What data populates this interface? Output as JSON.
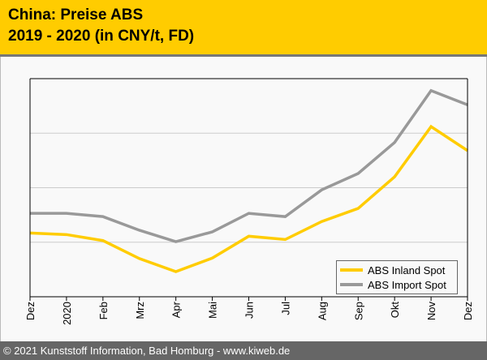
{
  "header": {
    "title_line1": "China: Preise ABS",
    "title_line2": "2019 - 2020 (in CNY/t, FD)"
  },
  "footer": {
    "text": "© 2021 Kunststoff Information, Bad Homburg - www.kiweb.de"
  },
  "chart_data": {
    "type": "line",
    "title": "China: Preise ABS 2019 - 2020 (in CNY/t, FD)",
    "xlabel": "",
    "ylabel": "",
    "categories": [
      "Dez",
      "2020",
      "Feb",
      "Mrz",
      "Apr",
      "Mai",
      "Jun",
      "Jul",
      "Aug",
      "Sep",
      "Okt",
      "Nov",
      "Dez"
    ],
    "ylim": [
      0,
      4
    ],
    "y_note": "relative scale (no y tick labels shown)",
    "grid": true,
    "legend_position": "bottom-right",
    "series": [
      {
        "name": "ABS Inland Spot",
        "color": "#ffcc00",
        "values": [
          1.17,
          1.14,
          1.03,
          0.7,
          0.46,
          0.71,
          1.11,
          1.05,
          1.38,
          1.62,
          2.2,
          3.12,
          2.68
        ]
      },
      {
        "name": "ABS Import Spot",
        "color": "#999999",
        "values": [
          1.53,
          1.53,
          1.47,
          1.22,
          1.01,
          1.19,
          1.53,
          1.47,
          1.96,
          2.26,
          2.83,
          3.78,
          3.52
        ]
      }
    ]
  }
}
